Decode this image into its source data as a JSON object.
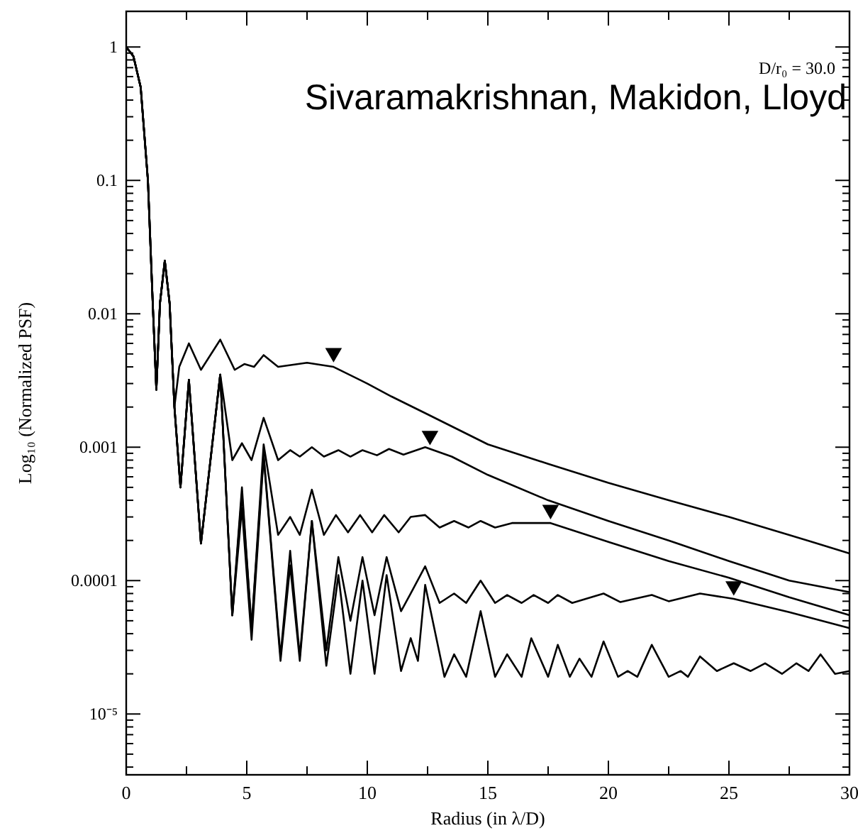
{
  "chart_data": {
    "type": "line",
    "xlabel": "Radius (in λ/D)",
    "ylabel": "Log₁₀ (Normalized PSF)",
    "log": "y",
    "marker": "none",
    "line_style": "solid",
    "annotations": [
      "D/r₀ = 30.0",
      "Sivaramakrishnan, Makidon, Lloyd"
    ],
    "xlim": [
      0,
      30
    ],
    "ylim": [
      3.5e-06,
      1.85
    ],
    "xticks": [
      0,
      {
        "value": 2.5,
        "label": null
      },
      5,
      {
        "value": 7.5,
        "label": null
      },
      10,
      {
        "value": 12.5,
        "label": null
      },
      15,
      {
        "value": 17.5,
        "label": null
      },
      20,
      {
        "value": 22.5,
        "label": null
      },
      25,
      {
        "value": 27.5,
        "label": null
      },
      30
    ],
    "yticks": [
      {
        "value": 4e-06,
        "label": null
      },
      {
        "value": 5e-06,
        "label": null
      },
      {
        "value": 6e-06,
        "label": null
      },
      {
        "value": 7e-06,
        "label": null
      },
      {
        "value": 8e-06,
        "label": null
      },
      {
        "value": 9e-06,
        "label": null
      },
      {
        "value": 1e-05,
        "label": "10⁻⁵"
      },
      {
        "value": 2e-05,
        "label": null
      },
      {
        "value": 3e-05,
        "label": null
      },
      {
        "value": 4e-05,
        "label": null
      },
      {
        "value": 5e-05,
        "label": null
      },
      {
        "value": 6e-05,
        "label": null
      },
      {
        "value": 7e-05,
        "label": null
      },
      {
        "value": 8e-05,
        "label": null
      },
      {
        "value": 9e-05,
        "label": null
      },
      {
        "value": 0.0001,
        "label": "0.0001"
      },
      {
        "value": 0.0002,
        "label": null
      },
      {
        "value": 0.0003,
        "label": null
      },
      {
        "value": 0.0004,
        "label": null
      },
      {
        "value": 0.0005,
        "label": null
      },
      {
        "value": 0.0006,
        "label": null
      },
      {
        "value": 0.0007,
        "label": null
      },
      {
        "value": 0.0008,
        "label": null
      },
      {
        "value": 0.0009,
        "label": null
      },
      {
        "value": 0.001,
        "label": "0.001"
      },
      {
        "value": 0.002,
        "label": null
      },
      {
        "value": 0.003,
        "label": null
      },
      {
        "value": 0.004,
        "label": null
      },
      {
        "value": 0.005,
        "label": null
      },
      {
        "value": 0.006,
        "label": null
      },
      {
        "value": 0.007,
        "label": null
      },
      {
        "value": 0.008,
        "label": null
      },
      {
        "value": 0.009,
        "label": null
      },
      {
        "value": 0.01,
        "label": "0.01"
      },
      {
        "value": 0.02,
        "label": null
      },
      {
        "value": 0.03,
        "label": null
      },
      {
        "value": 0.04,
        "label": null
      },
      {
        "value": 0.05,
        "label": null
      },
      {
        "value": 0.06,
        "label": null
      },
      {
        "value": 0.07,
        "label": null
      },
      {
        "value": 0.08,
        "label": null
      },
      {
        "value": 0.09,
        "label": null
      },
      {
        "value": 0.1,
        "label": "0.1"
      },
      {
        "value": 0.2,
        "label": null
      },
      {
        "value": 0.3,
        "label": null
      },
      {
        "value": 0.4,
        "label": null
      },
      {
        "value": 0.5,
        "label": null
      },
      {
        "value": 0.6,
        "label": null
      },
      {
        "value": 0.7,
        "label": null
      },
      {
        "value": 0.8,
        "label": null
      },
      {
        "value": 0.9,
        "label": null
      },
      1
    ],
    "series": [
      {
        "color": "#000000",
        "x": [
          0,
          0.3,
          0.6,
          0.9,
          1.1,
          1.25,
          1.4,
          1.6,
          1.8,
          2.0,
          2.2,
          2.6,
          3.1,
          3.9,
          4.5,
          4.9,
          5.3,
          5.7,
          6.3,
          7.5,
          8.6,
          10,
          11,
          12.4,
          15,
          17.5,
          20,
          22.5,
          25,
          27.5,
          30
        ],
        "values": [
          1,
          0.85,
          0.5,
          0.1,
          0.012,
          0.0027,
          0.012,
          0.025,
          0.012,
          0.002,
          0.004,
          0.006,
          0.0038,
          0.0064,
          0.0038,
          0.0042,
          0.004,
          0.0049,
          0.004,
          0.0043,
          0.004,
          0.003,
          0.0024,
          0.0018,
          0.00105,
          0.00075,
          0.00054,
          0.0004,
          0.0003,
          0.00022,
          0.00016
        ]
      },
      {
        "color": "#000000",
        "x": [
          0,
          0.3,
          0.6,
          0.9,
          1.1,
          1.25,
          1.4,
          1.6,
          1.8,
          2.0,
          2.25,
          2.6,
          3.1,
          3.9,
          4.4,
          4.8,
          5.2,
          5.7,
          6.3,
          6.8,
          7.2,
          7.7,
          8.2,
          8.8,
          9.3,
          9.8,
          10.4,
          10.9,
          11.5,
          12.4,
          13.5,
          15,
          17.5,
          20,
          22.5,
          25,
          27.5,
          30
        ],
        "values": [
          1,
          0.85,
          0.5,
          0.1,
          0.012,
          0.0027,
          0.012,
          0.025,
          0.012,
          0.002,
          0.0005,
          0.0032,
          0.00019,
          0.0035,
          0.0008,
          0.00107,
          0.0008,
          0.00166,
          0.0008,
          0.00095,
          0.00085,
          0.001,
          0.00085,
          0.00095,
          0.00085,
          0.00095,
          0.00087,
          0.00097,
          0.00088,
          0.001,
          0.00085,
          0.00062,
          0.0004,
          0.00028,
          0.0002,
          0.00014,
          0.0001,
          8.2e-05
        ]
      },
      {
        "color": "#000000",
        "x": [
          0,
          0.3,
          0.6,
          0.9,
          1.1,
          1.25,
          1.4,
          1.6,
          1.8,
          2.0,
          2.25,
          2.6,
          3.1,
          3.9,
          4.4,
          4.8,
          5.2,
          5.7,
          6.3,
          6.8,
          7.2,
          7.7,
          8.2,
          8.7,
          9.2,
          9.7,
          10.2,
          10.7,
          11.3,
          11.8,
          12.4,
          13.0,
          13.6,
          14.2,
          14.7,
          15.3,
          16,
          17.6,
          20,
          22.5,
          25,
          27.5,
          30
        ],
        "values": [
          1,
          0.85,
          0.5,
          0.1,
          0.012,
          0.0027,
          0.012,
          0.025,
          0.012,
          0.002,
          0.0005,
          0.0032,
          0.00019,
          0.0035,
          5.5e-05,
          0.0005,
          4.4e-05,
          0.00105,
          0.00022,
          0.0003,
          0.00022,
          0.00048,
          0.00022,
          0.00031,
          0.00023,
          0.00031,
          0.00023,
          0.00031,
          0.00023,
          0.0003,
          0.00031,
          0.00025,
          0.00028,
          0.00025,
          0.00028,
          0.00025,
          0.00027,
          0.00027,
          0.000195,
          0.00014,
          0.000105,
          7.5e-05,
          5.5e-05
        ]
      },
      {
        "color": "#000000",
        "x": [
          0,
          0.3,
          0.6,
          0.9,
          1.1,
          1.25,
          1.4,
          1.6,
          1.8,
          2.0,
          2.25,
          2.6,
          3.1,
          3.9,
          4.4,
          4.8,
          5.2,
          5.7,
          6.4,
          6.8,
          7.2,
          7.7,
          8.3,
          8.8,
          9.3,
          9.8,
          10.3,
          10.8,
          11.4,
          11.8,
          12.4,
          13.0,
          13.6,
          14.1,
          14.7,
          15.3,
          15.8,
          16.4,
          16.9,
          17.5,
          17.9,
          18.5,
          19.8,
          20.5,
          21.8,
          22.5,
          23.8,
          25.2,
          27.5,
          30
        ],
        "values": [
          1,
          0.85,
          0.5,
          0.1,
          0.012,
          0.0027,
          0.012,
          0.025,
          0.012,
          0.002,
          0.0005,
          0.0032,
          0.00019,
          0.0035,
          5.5e-05,
          0.00045,
          4.4e-05,
          0.00089,
          2.7e-05,
          0.000167,
          2.7e-05,
          0.00028,
          3e-05,
          0.00015,
          5e-05,
          0.00015,
          5.5e-05,
          0.00015,
          5.9e-05,
          8e-05,
          0.000128,
          6.8e-05,
          8e-05,
          6.8e-05,
          0.0001,
          6.8e-05,
          7.8e-05,
          6.8e-05,
          7.8e-05,
          6.8e-05,
          7.8e-05,
          6.8e-05,
          8e-05,
          6.9e-05,
          7.8e-05,
          7e-05,
          8e-05,
          7.3e-05,
          5.8e-05,
          4.4e-05
        ]
      },
      {
        "color": "#000000",
        "x": [
          0,
          0.3,
          0.6,
          0.9,
          1.1,
          1.25,
          1.4,
          1.6,
          1.8,
          2.0,
          2.25,
          2.6,
          3.1,
          3.9,
          4.4,
          4.8,
          5.2,
          5.7,
          6.4,
          6.8,
          7.2,
          7.7,
          8.3,
          8.8,
          9.3,
          9.8,
          10.3,
          10.8,
          11.4,
          11.8,
          12.1,
          12.4,
          13.2,
          13.6,
          14.1,
          14.7,
          15.3,
          15.8,
          16.4,
          16.8,
          17.5,
          17.9,
          18.4,
          18.8,
          19.3,
          19.8,
          20.4,
          20.8,
          21.2,
          21.8,
          22.5,
          23,
          23.3,
          23.8,
          24.5,
          25.2,
          25.9,
          26.5,
          27.2,
          27.8,
          28.3,
          28.8,
          29.4,
          30
        ],
        "values": [
          1,
          0.85,
          0.5,
          0.1,
          0.012,
          0.0027,
          0.012,
          0.025,
          0.012,
          0.002,
          0.0005,
          0.0032,
          0.00019,
          0.0035,
          5.5e-05,
          0.00035,
          3.6e-05,
          0.00085,
          2.5e-05,
          0.00013,
          2.5e-05,
          0.00028,
          2.3e-05,
          0.00011,
          2e-05,
          0.0001,
          2e-05,
          0.00011,
          2.1e-05,
          3.7e-05,
          2.5e-05,
          9.3e-05,
          1.9e-05,
          2.8e-05,
          1.9e-05,
          5.9e-05,
          1.9e-05,
          2.8e-05,
          1.9e-05,
          3.7e-05,
          1.9e-05,
          3.3e-05,
          1.9e-05,
          2.6e-05,
          1.9e-05,
          3.5e-05,
          1.9e-05,
          2.1e-05,
          1.9e-05,
          3.3e-05,
          1.9e-05,
          2.1e-05,
          1.9e-05,
          2.7e-05,
          2.1e-05,
          2.4e-05,
          2.1e-05,
          2.4e-05,
          2e-05,
          2.4e-05,
          2.1e-05,
          2.8e-05,
          2e-05,
          2.1e-05
        ]
      },
      {
        "type": "scatter",
        "marker": "triangle",
        "color": "#000000",
        "x": [
          8.6,
          12.6,
          17.6,
          25.2
        ],
        "values": [
          0.0051,
          0.00122,
          0.00034,
          9.1e-05
        ]
      }
    ]
  }
}
